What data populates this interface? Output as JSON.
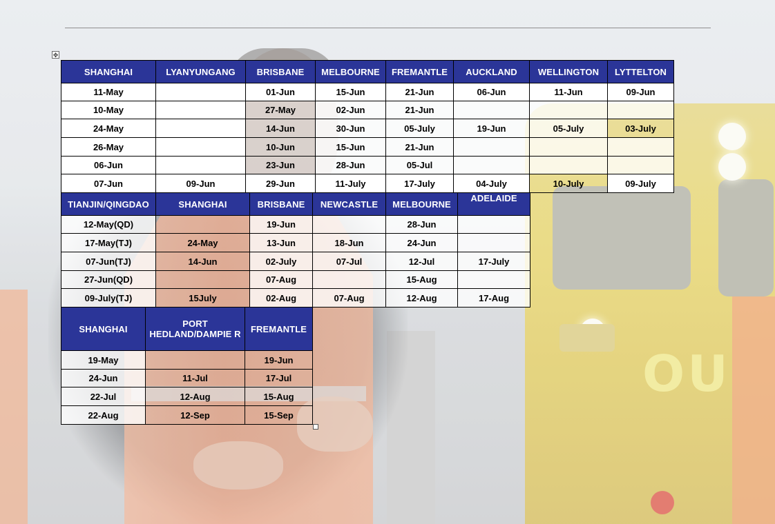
{
  "table1": {
    "headers": [
      "SHANGHAI",
      "LYANYUNGANG",
      "BRISBANE",
      "MELBOURNE",
      "FREMANTLE",
      "AUCKLAND",
      "WELLINGTON",
      "LYTTELTON"
    ],
    "rows": [
      [
        "11-May",
        "",
        "01-Jun",
        "15-Jun",
        "21-Jun",
        "06-Jun",
        "11-Jun",
        "09-Jun"
      ],
      [
        "10-May",
        "",
        "27-May",
        "02-Jun",
        "21-Jun",
        "",
        "",
        ""
      ],
      [
        "24-May",
        "",
        "14-Jun",
        "30-Jun",
        "05-July",
        "19-Jun",
        "05-July",
        "03-July"
      ],
      [
        "26-May",
        "",
        "10-Jun",
        "15-Jun",
        "21-Jun",
        "",
        "",
        ""
      ],
      [
        "06-Jun",
        "",
        "23-Jun",
        "28-Jun",
        "05-Jul",
        "",
        "",
        ""
      ],
      [
        "07-Jun",
        "09-Jun",
        "29-Jun",
        "11-July",
        "17-July",
        "04-July",
        "10-July",
        "09-July"
      ]
    ]
  },
  "table2": {
    "headers": [
      "TIANJIN/QINGDAO",
      "SHANGHAI",
      "BRISBANE",
      "NEWCASTLE",
      "MELBOURNE",
      "ADELAIDE"
    ],
    "rows": [
      [
        "12-May(QD)",
        "",
        "19-Jun",
        "",
        "28-Jun",
        ""
      ],
      [
        "17-May(TJ)",
        "24-May",
        "13-Jun",
        "18-Jun",
        "24-Jun",
        ""
      ],
      [
        "07-Jun(TJ)",
        "14-Jun",
        "02-July",
        "07-Jul",
        "12-Jul",
        "17-July"
      ],
      [
        "27-Jun(QD)",
        "",
        "07-Aug",
        "",
        "15-Aug",
        ""
      ],
      [
        "09-July(TJ)",
        "15July",
        "02-Aug",
        "07-Aug",
        "12-Aug",
        "17-Aug"
      ]
    ]
  },
  "table3": {
    "headers": [
      "SHANGHAI",
      "PORT HEDLAND/DAMPIE R",
      "FREMANTLE"
    ],
    "rows": [
      [
        "19-May",
        "",
        "19-Jun"
      ],
      [
        "24-Jun",
        "11-Jul",
        "17-Jul"
      ],
      [
        "22-Jul",
        "12-Aug",
        "15-Aug"
      ],
      [
        "22-Aug",
        "12-Sep",
        "15-Sep"
      ]
    ]
  },
  "ui": {
    "anchor_glyph": "✥"
  },
  "colors": {
    "header_bg": "#2b3598",
    "header_text": "#ffffff",
    "border": "#000000"
  }
}
